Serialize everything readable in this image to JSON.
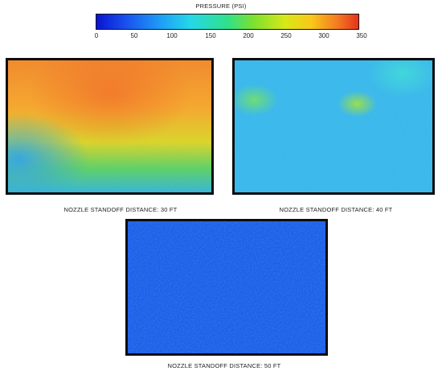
{
  "colorbar": {
    "title": "PRESSURE (PSI)",
    "ticks": [
      "0",
      "50",
      "100",
      "150",
      "200",
      "250",
      "300",
      "350"
    ]
  },
  "panels": [
    {
      "caption": "NOZZLE STANDOFF DISTANCE:  30 FT"
    },
    {
      "caption": "NOZZLE STANDOFF DISTANCE:  40 FT"
    },
    {
      "caption": "NOZZLE STANDOFF DISTANCE:  50 FT"
    }
  ]
}
